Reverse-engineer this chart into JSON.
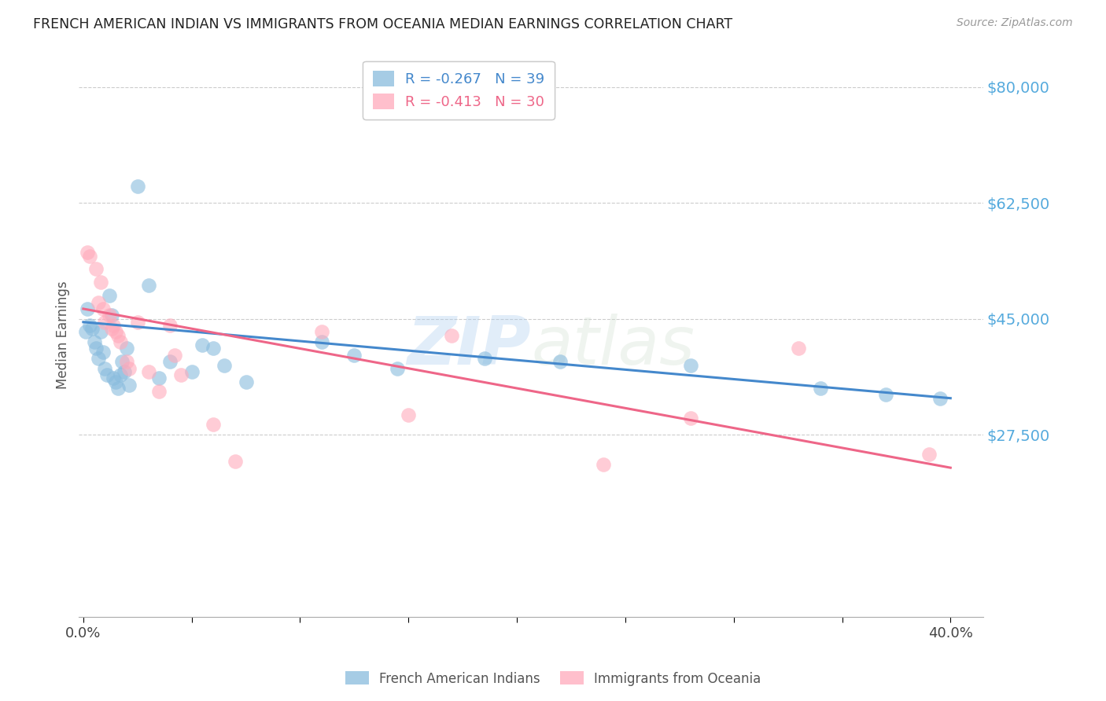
{
  "title": "FRENCH AMERICAN INDIAN VS IMMIGRANTS FROM OCEANIA MEDIAN EARNINGS CORRELATION CHART",
  "source": "Source: ZipAtlas.com",
  "ylabel": "Median Earnings",
  "ymin": 0,
  "ymax": 85000,
  "xmin": -0.002,
  "xmax": 0.415,
  "watermark_text": "ZIPatlas",
  "legend_labels": [
    "French American Indians",
    "Immigrants from Oceania"
  ],
  "blue_color": "#88bbdd",
  "pink_color": "#ffaabb",
  "blue_line_color": "#4488cc",
  "pink_line_color": "#ee6688",
  "blue_scatter": [
    [
      0.001,
      43000
    ],
    [
      0.002,
      46500
    ],
    [
      0.003,
      44000
    ],
    [
      0.004,
      43500
    ],
    [
      0.005,
      41500
    ],
    [
      0.006,
      40500
    ],
    [
      0.007,
      39000
    ],
    [
      0.008,
      43000
    ],
    [
      0.009,
      40000
    ],
    [
      0.01,
      37500
    ],
    [
      0.011,
      36500
    ],
    [
      0.012,
      48500
    ],
    [
      0.013,
      45500
    ],
    [
      0.014,
      36000
    ],
    [
      0.015,
      35500
    ],
    [
      0.016,
      34500
    ],
    [
      0.017,
      36500
    ],
    [
      0.018,
      38500
    ],
    [
      0.019,
      37000
    ],
    [
      0.02,
      40500
    ],
    [
      0.021,
      35000
    ],
    [
      0.025,
      65000
    ],
    [
      0.03,
      50000
    ],
    [
      0.035,
      36000
    ],
    [
      0.04,
      38500
    ],
    [
      0.05,
      37000
    ],
    [
      0.055,
      41000
    ],
    [
      0.06,
      40500
    ],
    [
      0.065,
      38000
    ],
    [
      0.075,
      35500
    ],
    [
      0.11,
      41500
    ],
    [
      0.125,
      39500
    ],
    [
      0.145,
      37500
    ],
    [
      0.185,
      39000
    ],
    [
      0.22,
      38500
    ],
    [
      0.28,
      38000
    ],
    [
      0.34,
      34500
    ],
    [
      0.37,
      33500
    ],
    [
      0.395,
      33000
    ]
  ],
  "pink_scatter": [
    [
      0.002,
      55000
    ],
    [
      0.003,
      54500
    ],
    [
      0.006,
      52500
    ],
    [
      0.007,
      47500
    ],
    [
      0.008,
      50500
    ],
    [
      0.009,
      46500
    ],
    [
      0.01,
      44500
    ],
    [
      0.012,
      45500
    ],
    [
      0.013,
      43500
    ],
    [
      0.014,
      44000
    ],
    [
      0.015,
      43000
    ],
    [
      0.016,
      42500
    ],
    [
      0.017,
      41500
    ],
    [
      0.02,
      38500
    ],
    [
      0.021,
      37500
    ],
    [
      0.025,
      44500
    ],
    [
      0.03,
      37000
    ],
    [
      0.035,
      34000
    ],
    [
      0.04,
      44000
    ],
    [
      0.042,
      39500
    ],
    [
      0.045,
      36500
    ],
    [
      0.06,
      29000
    ],
    [
      0.07,
      23500
    ],
    [
      0.11,
      43000
    ],
    [
      0.15,
      30500
    ],
    [
      0.17,
      42500
    ],
    [
      0.24,
      23000
    ],
    [
      0.28,
      30000
    ],
    [
      0.33,
      40500
    ],
    [
      0.39,
      24500
    ]
  ],
  "blue_line_x": [
    0.0,
    0.4
  ],
  "blue_line_y": [
    44500,
    33000
  ],
  "pink_line_x": [
    0.0,
    0.4
  ],
  "pink_line_y": [
    46500,
    22500
  ],
  "ytick_positions": [
    27500,
    45000,
    62500,
    80000
  ],
  "ytick_labels": [
    "$27,500",
    "$45,000",
    "$62,500",
    "$80,000"
  ],
  "xtick_positions": [
    0.0,
    0.05,
    0.1,
    0.15,
    0.2,
    0.25,
    0.3,
    0.35,
    0.4
  ],
  "xtick_labels": [
    "0.0%",
    "",
    "",
    "",
    "",
    "",
    "",
    "",
    "40.0%"
  ],
  "grid_color": "#cccccc",
  "bg_color": "#ffffff",
  "title_color": "#222222",
  "tick_color": "#55aadd",
  "xlabel_color": "#444444"
}
